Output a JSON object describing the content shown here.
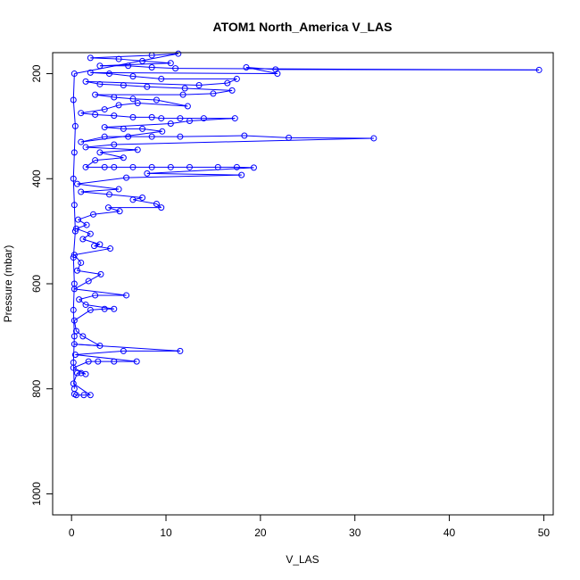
{
  "chart_data": {
    "type": "scatter",
    "title": "ATOM1 North_America V_LAS",
    "xlabel": "V_LAS",
    "ylabel": "Pressure (mbar)",
    "xlim": [
      -2,
      51
    ],
    "ylim": [
      1040,
      160
    ],
    "y_reversed": true,
    "x_ticks": [
      0,
      10,
      20,
      30,
      40,
      50
    ],
    "x_tick_labels": [
      "0",
      "10",
      "20",
      "30",
      "40",
      "50"
    ],
    "y_ticks": [
      200,
      400,
      600,
      800,
      1000
    ],
    "y_tick_labels": [
      "200",
      "400",
      "600",
      "800",
      "1000"
    ],
    "grid": false,
    "legend": "none",
    "marker": "open-circle",
    "connected_lines": true,
    "series_color": "#0000ff",
    "points": [
      {
        "x": 0.3,
        "y": 810
      },
      {
        "x": 0.5,
        "y": 812
      },
      {
        "x": 1.3,
        "y": 812
      },
      {
        "x": 2.0,
        "y": 812
      },
      {
        "x": 0.2,
        "y": 790
      },
      {
        "x": 0.6,
        "y": 770
      },
      {
        "x": 1.0,
        "y": 770
      },
      {
        "x": 1.5,
        "y": 772
      },
      {
        "x": 0.2,
        "y": 760
      },
      {
        "x": 1.8,
        "y": 748
      },
      {
        "x": 2.8,
        "y": 748
      },
      {
        "x": 4.5,
        "y": 748
      },
      {
        "x": 6.9,
        "y": 748
      },
      {
        "x": 0.4,
        "y": 735
      },
      {
        "x": 5.5,
        "y": 728
      },
      {
        "x": 11.5,
        "y": 728
      },
      {
        "x": 0.3,
        "y": 715
      },
      {
        "x": 3.0,
        "y": 718
      },
      {
        "x": 1.2,
        "y": 700
      },
      {
        "x": 0.5,
        "y": 690
      },
      {
        "x": 0.3,
        "y": 670
      },
      {
        "x": 2.0,
        "y": 650
      },
      {
        "x": 3.5,
        "y": 648
      },
      {
        "x": 4.5,
        "y": 648
      },
      {
        "x": 1.5,
        "y": 640
      },
      {
        "x": 0.8,
        "y": 630
      },
      {
        "x": 2.5,
        "y": 622
      },
      {
        "x": 5.8,
        "y": 622
      },
      {
        "x": 0.3,
        "y": 610
      },
      {
        "x": 1.8,
        "y": 595
      },
      {
        "x": 3.1,
        "y": 582
      },
      {
        "x": 0.6,
        "y": 575
      },
      {
        "x": 1.0,
        "y": 560
      },
      {
        "x": 0.3,
        "y": 545
      },
      {
        "x": 4.1,
        "y": 533
      },
      {
        "x": 2.4,
        "y": 528
      },
      {
        "x": 3.0,
        "y": 525
      },
      {
        "x": 1.2,
        "y": 515
      },
      {
        "x": 2.0,
        "y": 505
      },
      {
        "x": 0.5,
        "y": 495
      },
      {
        "x": 1.6,
        "y": 488
      },
      {
        "x": 0.7,
        "y": 478
      },
      {
        "x": 2.3,
        "y": 468
      },
      {
        "x": 5.1,
        "y": 462
      },
      {
        "x": 3.9,
        "y": 455
      },
      {
        "x": 9.5,
        "y": 455
      },
      {
        "x": 9.0,
        "y": 448
      },
      {
        "x": 6.5,
        "y": 440
      },
      {
        "x": 7.5,
        "y": 436
      },
      {
        "x": 4.0,
        "y": 430
      },
      {
        "x": 1.0,
        "y": 425
      },
      {
        "x": 5.0,
        "y": 420
      },
      {
        "x": 0.6,
        "y": 410
      },
      {
        "x": 5.8,
        "y": 398
      },
      {
        "x": 18.0,
        "y": 393
      },
      {
        "x": 8.0,
        "y": 390
      },
      {
        "x": 19.3,
        "y": 379
      },
      {
        "x": 17.5,
        "y": 378
      },
      {
        "x": 15.5,
        "y": 378
      },
      {
        "x": 12.5,
        "y": 378
      },
      {
        "x": 10.5,
        "y": 378
      },
      {
        "x": 8.5,
        "y": 378
      },
      {
        "x": 6.5,
        "y": 378
      },
      {
        "x": 4.5,
        "y": 378
      },
      {
        "x": 3.5,
        "y": 378
      },
      {
        "x": 1.5,
        "y": 378
      },
      {
        "x": 2.5,
        "y": 365
      },
      {
        "x": 5.5,
        "y": 360
      },
      {
        "x": 3.0,
        "y": 350
      },
      {
        "x": 7.0,
        "y": 345
      },
      {
        "x": 1.5,
        "y": 340
      },
      {
        "x": 4.5,
        "y": 335
      },
      {
        "x": 32.0,
        "y": 323
      },
      {
        "x": 23.0,
        "y": 322
      },
      {
        "x": 18.3,
        "y": 318
      },
      {
        "x": 11.5,
        "y": 320
      },
      {
        "x": 8.5,
        "y": 320
      },
      {
        "x": 6.0,
        "y": 320
      },
      {
        "x": 3.5,
        "y": 320
      },
      {
        "x": 1.0,
        "y": 330
      },
      {
        "x": 9.6,
        "y": 310
      },
      {
        "x": 7.5,
        "y": 305
      },
      {
        "x": 5.5,
        "y": 305
      },
      {
        "x": 3.5,
        "y": 302
      },
      {
        "x": 10.5,
        "y": 295
      },
      {
        "x": 12.5,
        "y": 290
      },
      {
        "x": 17.3,
        "y": 285
      },
      {
        "x": 14.0,
        "y": 285
      },
      {
        "x": 11.5,
        "y": 285
      },
      {
        "x": 9.5,
        "y": 285
      },
      {
        "x": 8.5,
        "y": 283
      },
      {
        "x": 6.5,
        "y": 283
      },
      {
        "x": 4.5,
        "y": 280
      },
      {
        "x": 2.5,
        "y": 278
      },
      {
        "x": 1.0,
        "y": 275
      },
      {
        "x": 3.5,
        "y": 268
      },
      {
        "x": 5.0,
        "y": 260
      },
      {
        "x": 7.0,
        "y": 256
      },
      {
        "x": 12.3,
        "y": 262
      },
      {
        "x": 9.0,
        "y": 250
      },
      {
        "x": 6.5,
        "y": 248
      },
      {
        "x": 4.5,
        "y": 245
      },
      {
        "x": 2.5,
        "y": 240
      },
      {
        "x": 11.8,
        "y": 240
      },
      {
        "x": 15.0,
        "y": 238
      },
      {
        "x": 17.0,
        "y": 232
      },
      {
        "x": 12.0,
        "y": 228
      },
      {
        "x": 8.0,
        "y": 225
      },
      {
        "x": 5.5,
        "y": 222
      },
      {
        "x": 3.0,
        "y": 220
      },
      {
        "x": 1.5,
        "y": 215
      },
      {
        "x": 13.5,
        "y": 222
      },
      {
        "x": 16.5,
        "y": 218
      },
      {
        "x": 17.5,
        "y": 210
      },
      {
        "x": 9.5,
        "y": 210
      },
      {
        "x": 6.5,
        "y": 205
      },
      {
        "x": 4.0,
        "y": 200
      },
      {
        "x": 2.0,
        "y": 198
      },
      {
        "x": 21.8,
        "y": 200
      },
      {
        "x": 18.5,
        "y": 188
      },
      {
        "x": 21.6,
        "y": 192
      },
      {
        "x": 49.5,
        "y": 193
      },
      {
        "x": 11.0,
        "y": 190
      },
      {
        "x": 8.5,
        "y": 188
      },
      {
        "x": 6.0,
        "y": 185
      },
      {
        "x": 3.0,
        "y": 185
      },
      {
        "x": 10.5,
        "y": 180
      },
      {
        "x": 7.5,
        "y": 176
      },
      {
        "x": 5.0,
        "y": 172
      },
      {
        "x": 2.0,
        "y": 170
      },
      {
        "x": 8.5,
        "y": 165
      },
      {
        "x": 11.3,
        "y": 162
      },
      {
        "x": 0.3,
        "y": 200
      },
      {
        "x": 0.2,
        "y": 250
      },
      {
        "x": 0.4,
        "y": 300
      },
      {
        "x": 0.3,
        "y": 350
      },
      {
        "x": 0.2,
        "y": 400
      },
      {
        "x": 0.3,
        "y": 450
      },
      {
        "x": 0.4,
        "y": 500
      },
      {
        "x": 0.2,
        "y": 550
      },
      {
        "x": 0.3,
        "y": 600
      },
      {
        "x": 0.2,
        "y": 650
      },
      {
        "x": 0.3,
        "y": 700
      },
      {
        "x": 0.2,
        "y": 750
      },
      {
        "x": 0.3,
        "y": 800
      }
    ]
  }
}
